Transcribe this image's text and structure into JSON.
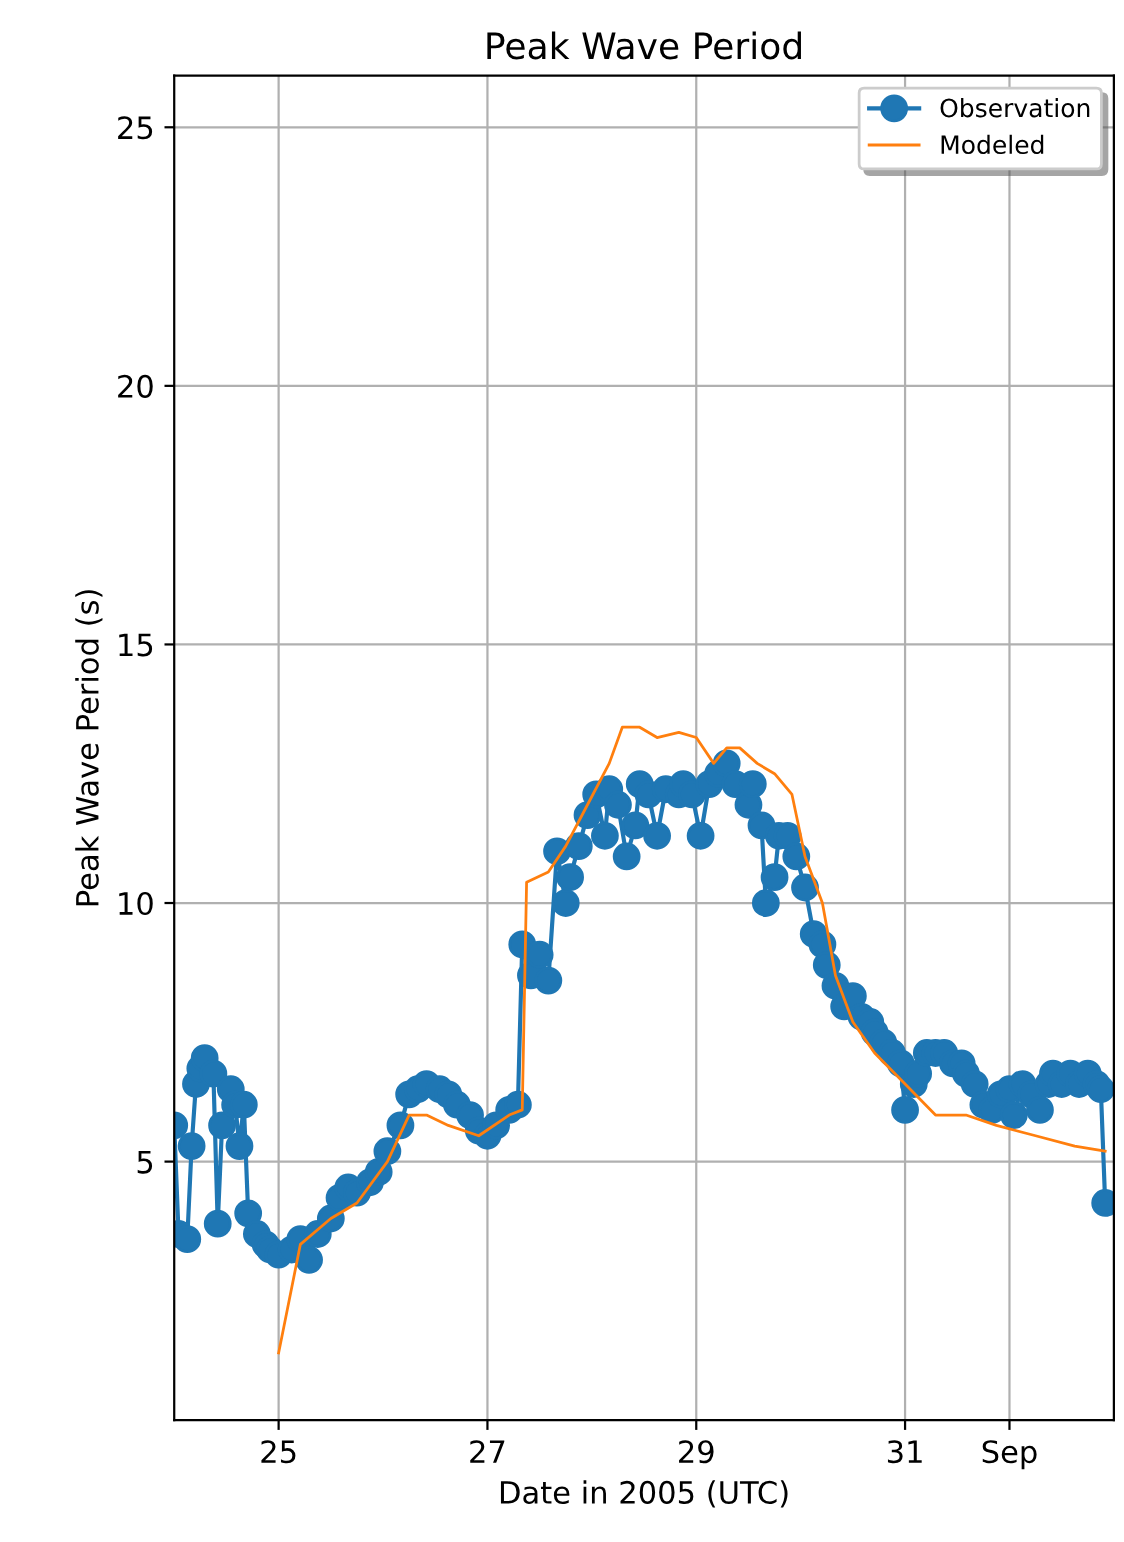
{
  "chart_data": {
    "type": "line",
    "title": "Peak Wave Period",
    "xlabel": "Date in 2005 (UTC)",
    "ylabel": "Peak Wave Period (s)",
    "xlim": [
      "2005-08-24",
      "2005-09-02"
    ],
    "xticks": [
      {
        "value": "2005-08-25",
        "label": "25"
      },
      {
        "value": "2005-08-27",
        "label": "27"
      },
      {
        "value": "2005-08-29",
        "label": "29"
      },
      {
        "value": "2005-08-31",
        "label": "31"
      },
      {
        "value": "2005-09-01",
        "label": "Sep"
      }
    ],
    "ylim": [
      0,
      26
    ],
    "yticks": [
      5,
      10,
      15,
      20,
      25
    ],
    "grid": true,
    "legend": "top right",
    "series": [
      {
        "name": "Observation",
        "color": "#1f77b4",
        "marker": "circle",
        "x": [
          "2005-08-24T00:00",
          "2005-08-24T01:00",
          "2005-08-24T03:00",
          "2005-08-24T04:00",
          "2005-08-24T05:00",
          "2005-08-24T06:00",
          "2005-08-24T07:00",
          "2005-08-24T09:00",
          "2005-08-24T10:00",
          "2005-08-24T11:00",
          "2005-08-24T13:00",
          "2005-08-24T14:00",
          "2005-08-24T15:00",
          "2005-08-24T16:00",
          "2005-08-24T17:00",
          "2005-08-24T19:00",
          "2005-08-24T21:00",
          "2005-08-24T22:00",
          "2005-08-25T00:00",
          "2005-08-25T03:00",
          "2005-08-25T05:00",
          "2005-08-25T07:00",
          "2005-08-25T09:00",
          "2005-08-25T12:00",
          "2005-08-25T14:00",
          "2005-08-25T16:00",
          "2005-08-25T18:00",
          "2005-08-25T21:00",
          "2005-08-25T23:00",
          "2005-08-26T01:00",
          "2005-08-26T04:00",
          "2005-08-26T06:00",
          "2005-08-26T08:00",
          "2005-08-26T10:00",
          "2005-08-26T13:00",
          "2005-08-26T15:00",
          "2005-08-26T17:00",
          "2005-08-26T20:00",
          "2005-08-26T22:00",
          "2005-08-27T00:00",
          "2005-08-27T02:00",
          "2005-08-27T05:00",
          "2005-08-27T07:00",
          "2005-08-27T08:00",
          "2005-08-27T10:00",
          "2005-08-27T12:00",
          "2005-08-27T14:00",
          "2005-08-27T16:00",
          "2005-08-27T18:00",
          "2005-08-27T19:00",
          "2005-08-27T21:00",
          "2005-08-27T23:00",
          "2005-08-28T01:00",
          "2005-08-28T03:00",
          "2005-08-28T04:00",
          "2005-08-28T06:00",
          "2005-08-28T08:00",
          "2005-08-28T10:00",
          "2005-08-28T11:00",
          "2005-08-28T13:00",
          "2005-08-28T15:00",
          "2005-08-28T17:00",
          "2005-08-28T20:00",
          "2005-08-28T21:00",
          "2005-08-28T23:00",
          "2005-08-29T01:00",
          "2005-08-29T03:00",
          "2005-08-29T05:00",
          "2005-08-29T07:00",
          "2005-08-29T09:00",
          "2005-08-29T12:00",
          "2005-08-29T13:00",
          "2005-08-29T15:00",
          "2005-08-29T16:00",
          "2005-08-29T18:00",
          "2005-08-29T19:00",
          "2005-08-29T21:00",
          "2005-08-29T23:00",
          "2005-08-30T01:00",
          "2005-08-30T03:00",
          "2005-08-30T05:00",
          "2005-08-30T06:00",
          "2005-08-30T08:00",
          "2005-08-30T10:00",
          "2005-08-30T12:00",
          "2005-08-30T14:00",
          "2005-08-30T16:00",
          "2005-08-30T17:00",
          "2005-08-30T19:00",
          "2005-08-30T21:00",
          "2005-08-30T23:00",
          "2005-08-31T00:00",
          "2005-08-31T02:00",
          "2005-08-31T03:00",
          "2005-08-31T05:00",
          "2005-08-31T07:00",
          "2005-08-31T09:00",
          "2005-08-31T11:00",
          "2005-08-31T13:00",
          "2005-08-31T14:00",
          "2005-08-31T16:00",
          "2005-08-31T18:00",
          "2005-08-31T20:00",
          "2005-08-31T22:00",
          "2005-09-01T00:00",
          "2005-09-01T01:00",
          "2005-09-01T03:00",
          "2005-09-01T05:00",
          "2005-09-01T07:00",
          "2005-09-01T09:00",
          "2005-09-01T10:00",
          "2005-09-01T12:00",
          "2005-09-01T14:00",
          "2005-09-01T16:00",
          "2005-09-01T18:00",
          "2005-09-01T20:00",
          "2005-09-01T21:00",
          "2005-09-01T22:00"
        ],
        "values": [
          5.7,
          3.6,
          3.5,
          5.3,
          6.5,
          6.8,
          7.0,
          6.7,
          3.8,
          5.7,
          6.4,
          6.1,
          5.3,
          6.1,
          4.0,
          3.6,
          3.4,
          3.3,
          3.2,
          3.3,
          3.5,
          3.1,
          3.6,
          3.9,
          4.3,
          4.5,
          4.4,
          4.6,
          4.8,
          5.2,
          5.7,
          6.3,
          6.4,
          6.5,
          6.4,
          6.3,
          6.1,
          5.9,
          5.6,
          5.5,
          5.7,
          6.0,
          6.1,
          9.2,
          8.6,
          9.0,
          8.5,
          11.0,
          10.0,
          10.5,
          11.1,
          11.7,
          12.1,
          11.3,
          12.2,
          11.9,
          10.9,
          11.5,
          12.3,
          12.1,
          11.3,
          12.2,
          12.1,
          12.3,
          12.1,
          11.3,
          12.3,
          12.5,
          12.7,
          12.3,
          11.9,
          12.3,
          11.5,
          10.0,
          10.5,
          11.3,
          11.3,
          10.9,
          10.3,
          9.4,
          9.2,
          8.8,
          8.4,
          8.0,
          8.2,
          7.8,
          7.7,
          7.5,
          7.3,
          7.1,
          6.9,
          6.0,
          6.5,
          6.7,
          7.1,
          7.1,
          7.1,
          6.9,
          6.9,
          6.7,
          6.5,
          6.1,
          6.0,
          6.3,
          6.4,
          5.9,
          6.5,
          6.3,
          6.0,
          6.5,
          6.7,
          6.5,
          6.7,
          6.5,
          6.7,
          6.5,
          6.4,
          4.2
        ]
      },
      {
        "name": "Modeled",
        "color": "#ff7f0e",
        "marker": "none",
        "x": [
          "2005-08-25T00:00",
          "2005-08-25T05:00",
          "2005-08-25T12:00",
          "2005-08-25T18:00",
          "2005-08-26T01:00",
          "2005-08-26T06:00",
          "2005-08-26T10:00",
          "2005-08-26T15:00",
          "2005-08-26T22:00",
          "2005-08-27T05:00",
          "2005-08-27T08:00",
          "2005-08-27T09:00",
          "2005-08-27T14:00",
          "2005-08-27T18:00",
          "2005-08-27T23:00",
          "2005-08-28T04:00",
          "2005-08-28T07:00",
          "2005-08-28T11:00",
          "2005-08-28T15:00",
          "2005-08-28T20:00",
          "2005-08-29T00:00",
          "2005-08-29T04:00",
          "2005-08-29T07:00",
          "2005-08-29T10:00",
          "2005-08-29T14:00",
          "2005-08-29T18:00",
          "2005-08-29T22:00",
          "2005-08-30T01:00",
          "2005-08-30T05:00",
          "2005-08-30T08:00",
          "2005-08-30T12:00",
          "2005-08-30T17:00",
          "2005-08-31T00:00",
          "2005-08-31T07:00",
          "2005-08-31T14:00",
          "2005-08-31T21:00",
          "2005-09-01T06:00",
          "2005-09-01T15:00",
          "2005-09-01T22:00"
        ],
        "values": [
          1.3,
          3.4,
          3.9,
          4.2,
          5.0,
          5.9,
          5.9,
          5.7,
          5.5,
          5.9,
          6.0,
          10.4,
          10.6,
          11.1,
          11.9,
          12.7,
          13.4,
          13.4,
          13.2,
          13.3,
          13.2,
          12.7,
          13.0,
          13.0,
          12.7,
          12.5,
          12.1,
          10.9,
          10.0,
          8.6,
          7.7,
          7.1,
          6.5,
          5.9,
          5.9,
          5.7,
          5.5,
          5.3,
          5.2
        ]
      }
    ]
  }
}
